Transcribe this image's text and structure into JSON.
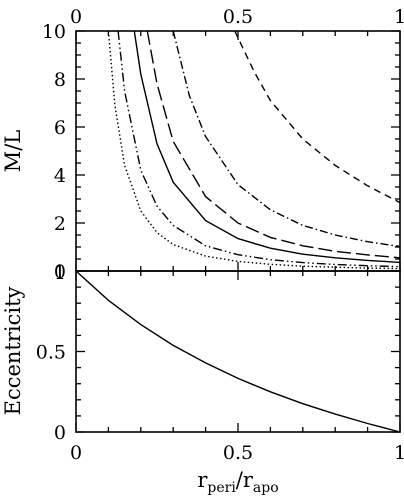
{
  "chart_data": [
    {
      "type": "line",
      "panel": "top",
      "ylabel": "M/L",
      "xlim": [
        0,
        1
      ],
      "ylim": [
        0,
        10
      ],
      "grid": false,
      "x_tick_labels_top": [
        "0",
        "0.5",
        "1"
      ],
      "y_tick_labels": [
        "0",
        "2",
        "4",
        "6",
        "8",
        "10"
      ],
      "series": [
        {
          "style": "dotted",
          "x": [
            0.1,
            0.12,
            0.15,
            0.2,
            0.25,
            0.3,
            0.4,
            0.5,
            0.6,
            0.7,
            0.8,
            0.9,
            1.0
          ],
          "y": [
            10,
            6.9,
            4.4,
            2.5,
            1.6,
            1.1,
            0.62,
            0.4,
            0.28,
            0.2,
            0.16,
            0.12,
            0.1
          ]
        },
        {
          "style": "dash-dot-dot",
          "x": [
            0.13,
            0.15,
            0.2,
            0.25,
            0.3,
            0.4,
            0.5,
            0.6,
            0.7,
            0.8,
            0.9,
            1.0
          ],
          "y": [
            10,
            7.5,
            4.2,
            2.7,
            1.9,
            1.05,
            0.68,
            0.47,
            0.35,
            0.27,
            0.22,
            0.18
          ]
        },
        {
          "style": "solid",
          "x": [
            0.18,
            0.2,
            0.25,
            0.3,
            0.4,
            0.5,
            0.6,
            0.7,
            0.8,
            0.9,
            1.0
          ],
          "y": [
            10,
            8.2,
            5.3,
            3.7,
            2.1,
            1.35,
            0.95,
            0.7,
            0.55,
            0.44,
            0.36
          ]
        },
        {
          "style": "long-dash",
          "x": [
            0.22,
            0.25,
            0.3,
            0.4,
            0.5,
            0.6,
            0.7,
            0.8,
            0.9,
            1.0
          ],
          "y": [
            10,
            7.8,
            5.4,
            3.1,
            2.0,
            1.4,
            1.05,
            0.82,
            0.67,
            0.55
          ]
        },
        {
          "style": "dash-dot",
          "x": [
            0.3,
            0.35,
            0.4,
            0.5,
            0.6,
            0.7,
            0.8,
            0.9,
            1.0
          ],
          "y": [
            10,
            7.3,
            5.6,
            3.6,
            2.55,
            1.9,
            1.5,
            1.22,
            1.02
          ]
        },
        {
          "style": "short-dash",
          "x": [
            0.49,
            0.55,
            0.6,
            0.7,
            0.8,
            0.9,
            1.0
          ],
          "y": [
            10,
            8.3,
            7.1,
            5.5,
            4.4,
            3.55,
            2.85
          ]
        }
      ]
    },
    {
      "type": "line",
      "panel": "bottom",
      "xlabel": "r",
      "xlabel_sub": "peri",
      "xlabel_sep": "/r",
      "xlabel_sub2": "apo",
      "ylabel": "Eccentricity",
      "xlim": [
        0,
        1
      ],
      "ylim": [
        0,
        1
      ],
      "grid": false,
      "x_tick_labels": [
        "0",
        "0.5",
        "1"
      ],
      "y_tick_labels": [
        "0",
        "0.5",
        "1"
      ],
      "series": [
        {
          "style": "solid",
          "x": [
            0,
            0.1,
            0.2,
            0.3,
            0.4,
            0.5,
            0.6,
            0.7,
            0.8,
            0.9,
            1.0
          ],
          "y": [
            1,
            0.818,
            0.667,
            0.538,
            0.429,
            0.333,
            0.25,
            0.176,
            0.111,
            0.053,
            0
          ]
        }
      ]
    }
  ]
}
